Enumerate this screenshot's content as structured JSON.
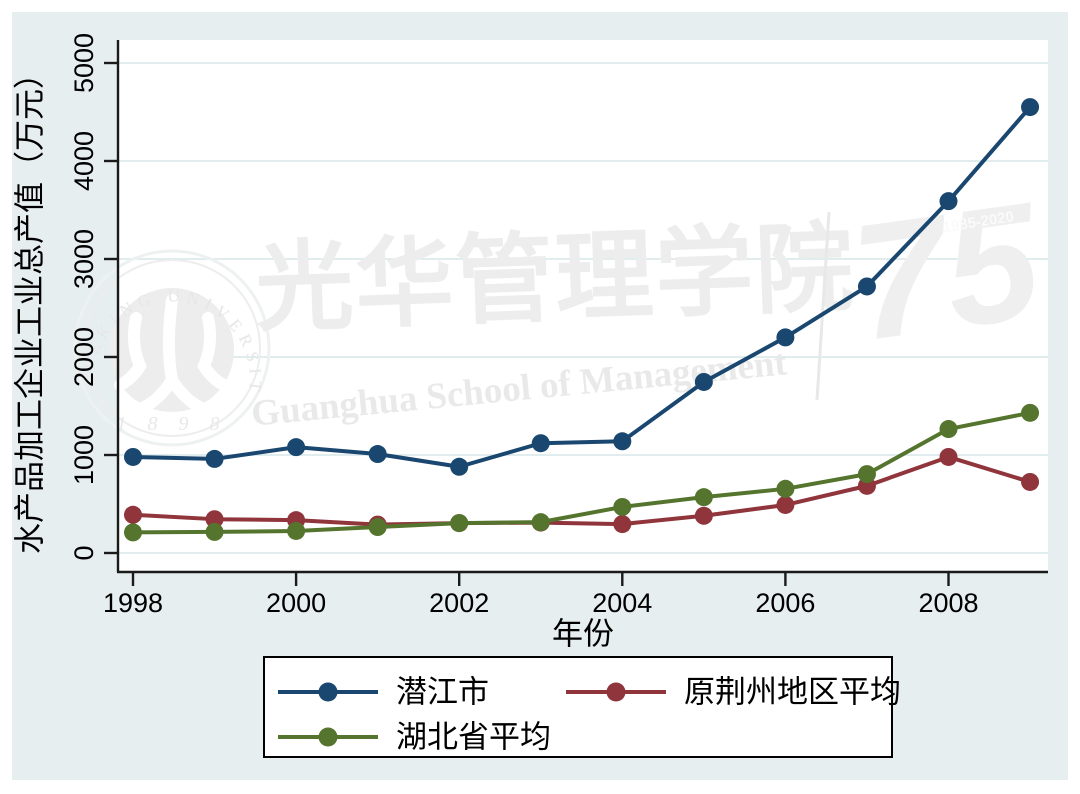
{
  "chart_data": {
    "type": "line",
    "title": "",
    "xlabel": "年份",
    "ylabel": "水产品加工企业工业总产值（万元）",
    "x": [
      1998,
      1999,
      2000,
      2001,
      2002,
      2003,
      2004,
      2005,
      2006,
      2007,
      2008,
      2009
    ],
    "xticks": [
      1998,
      2000,
      2002,
      2004,
      2006,
      2008
    ],
    "yticks": [
      0,
      1000,
      2000,
      3000,
      4000,
      5000
    ],
    "xlim": [
      1997.8,
      2009.2
    ],
    "ylim": [
      0,
      5000
    ],
    "grid": true,
    "legend_position": "bottom-box",
    "series": [
      {
        "name": "潜江市",
        "color": "#1a476f",
        "values": [
          980,
          960,
          1080,
          1010,
          880,
          1120,
          1140,
          1745,
          2200,
          2720,
          3590,
          4550
        ]
      },
      {
        "name": "原荆州地区平均",
        "color": "#90353b",
        "values": [
          390,
          345,
          335,
          290,
          305,
          310,
          295,
          380,
          490,
          685,
          980,
          725
        ]
      },
      {
        "name": "湖北省平均",
        "color": "#55752f",
        "values": [
          210,
          215,
          225,
          265,
          305,
          315,
          470,
          570,
          655,
          805,
          1265,
          1430
        ]
      }
    ],
    "colors": {
      "background": "#e7eeef",
      "plot_background": "#ffffff",
      "gridline": "#d7e6ea",
      "axis": "#1a1a1a",
      "watermark": "#ededed"
    }
  },
  "watermark": {
    "seal_top": "PEKING UNIVERSITY",
    "seal_year": "1 8 9 8",
    "calligraphy": "光华管理学院",
    "english": "Guanghua School of Management",
    "anniversary_number": "75",
    "anniversary_years": "1985-2020"
  }
}
